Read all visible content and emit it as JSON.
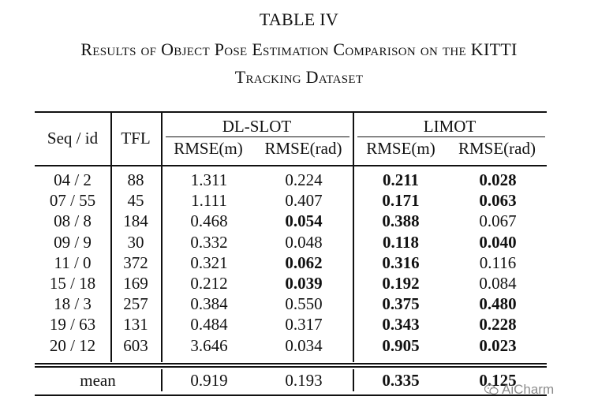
{
  "caption": {
    "number": "TABLE IV",
    "line1": "Results of Object Pose Estimation Comparison on the KITTI",
    "line2": "Tracking Dataset"
  },
  "header": {
    "seq": "Seq / id",
    "tfl": "TFL",
    "group1": "DL-SLOT",
    "group2": "LIMOT",
    "cols": [
      "RMSE(m)",
      "RMSE(rad)",
      "RMSE(m)",
      "RMSE(rad)"
    ]
  },
  "rows": [
    {
      "seq": "04 / 2",
      "tfl": "88",
      "v": [
        "1.311",
        "0.224",
        "0.211",
        "0.028"
      ],
      "bold": [
        false,
        false,
        true,
        true
      ]
    },
    {
      "seq": "07 / 55",
      "tfl": "45",
      "v": [
        "1.111",
        "0.407",
        "0.171",
        "0.063"
      ],
      "bold": [
        false,
        false,
        true,
        true
      ]
    },
    {
      "seq": "08 / 8",
      "tfl": "184",
      "v": [
        "0.468",
        "0.054",
        "0.388",
        "0.067"
      ],
      "bold": [
        false,
        true,
        true,
        false
      ]
    },
    {
      "seq": "09 / 9",
      "tfl": "30",
      "v": [
        "0.332",
        "0.048",
        "0.118",
        "0.040"
      ],
      "bold": [
        false,
        false,
        true,
        true
      ]
    },
    {
      "seq": "11 / 0",
      "tfl": "372",
      "v": [
        "0.321",
        "0.062",
        "0.316",
        "0.116"
      ],
      "bold": [
        false,
        true,
        true,
        false
      ]
    },
    {
      "seq": "15 / 18",
      "tfl": "169",
      "v": [
        "0.212",
        "0.039",
        "0.192",
        "0.084"
      ],
      "bold": [
        false,
        true,
        true,
        false
      ]
    },
    {
      "seq": "18 / 3",
      "tfl": "257",
      "v": [
        "0.384",
        "0.550",
        "0.375",
        "0.480"
      ],
      "bold": [
        false,
        false,
        true,
        true
      ]
    },
    {
      "seq": "19 / 63",
      "tfl": "131",
      "v": [
        "0.484",
        "0.317",
        "0.343",
        "0.228"
      ],
      "bold": [
        false,
        false,
        true,
        true
      ]
    },
    {
      "seq": "20 / 12",
      "tfl": "603",
      "v": [
        "3.646",
        "0.034",
        "0.905",
        "0.023"
      ],
      "bold": [
        false,
        false,
        true,
        true
      ]
    }
  ],
  "mean": {
    "label": "mean",
    "v": [
      "0.919",
      "0.193",
      "0.335",
      "0.125"
    ],
    "bold": [
      false,
      false,
      true,
      true
    ]
  },
  "watermark": {
    "text": "AiCharm",
    "icon": "wechat-icon"
  }
}
